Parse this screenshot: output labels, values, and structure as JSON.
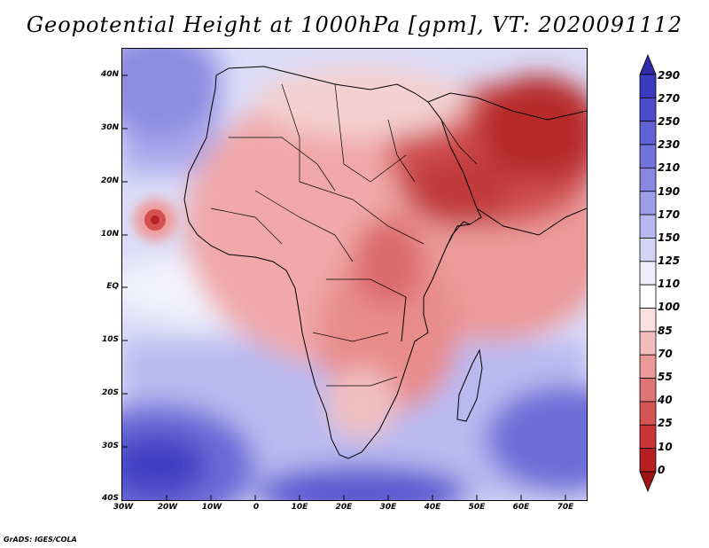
{
  "title": "Geopotential Height at 1000hPa [gpm], VT: 2020091112",
  "credit": "GrADS: IGES/COLA",
  "map": {
    "variable": "Geopotential Height at 1000hPa",
    "units": "gpm",
    "valid_time": "2020091112",
    "lat_range": [
      "40S",
      "45N"
    ],
    "lon_range": [
      "30W",
      "75E"
    ]
  },
  "axes": {
    "lat_labels": [
      "40N",
      "30N",
      "20N",
      "10N",
      "EQ",
      "10S",
      "20S",
      "30S",
      "40S"
    ],
    "lon_labels": [
      "30W",
      "20W",
      "10W",
      "0",
      "10E",
      "20E",
      "30E",
      "40E",
      "50E",
      "60E",
      "70E"
    ]
  },
  "colorbar": {
    "levels": [
      "290",
      "270",
      "250",
      "230",
      "210",
      "190",
      "170",
      "150",
      "125",
      "110",
      "100",
      "85",
      "70",
      "55",
      "40",
      "25",
      "10",
      "0"
    ],
    "colors": [
      "#2e2aa8",
      "#3b3bbf",
      "#4d4dcc",
      "#6161d6",
      "#7373dc",
      "#8787e2",
      "#9e9ee8",
      "#b8b8f0",
      "#d4d4f7",
      "#eeeefc",
      "#ffffff",
      "#fbe0e0",
      "#f3bcbc",
      "#ea9898",
      "#e07575",
      "#d65454",
      "#c93636",
      "#b51f1f",
      "#9c1414"
    ]
  }
}
